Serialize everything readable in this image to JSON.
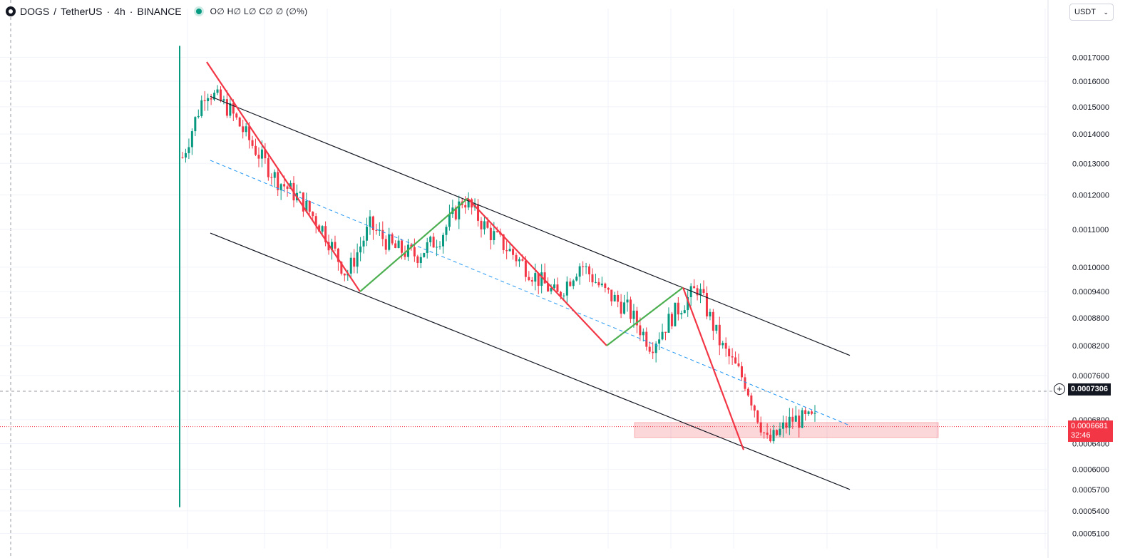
{
  "header": {
    "symbol": "DOGS",
    "separator": "/",
    "quote": "TetherUS",
    "interval": "4h",
    "exchange": "BINANCE",
    "ohlc_text": "O∅ H∅ L∅ C∅ ∅ (∅%)",
    "symbol_icon": "dogs-logo-icon"
  },
  "currency_selector": {
    "value": "USDT",
    "icon": "chevron-down-icon"
  },
  "crosshair": {
    "price_label": "0.0007306",
    "icon": "plus-circle-icon"
  },
  "last_price": {
    "price": "0.0006681",
    "countdown": "32:46"
  },
  "colors": {
    "up": "#089981",
    "down": "#f23645",
    "grid": "#f0f3fa",
    "trend_down": "#f23645",
    "trend_up": "#4caf50",
    "channel": "#131722",
    "midline": "#2196f3",
    "zone": "rgba(242,54,69,0.2)"
  },
  "chart_data": {
    "type": "candlestick",
    "symbol": "DOGS / TetherUS",
    "interval": "4h",
    "scale": "log",
    "ylim": [
      0.000505,
      0.00177
    ],
    "price_ticks": [
      "0.0017000",
      "0.0016000",
      "0.0015000",
      "0.0014000",
      "0.0013000",
      "0.0012000",
      "0.0011000",
      "0.0010000",
      "0.0009400",
      "0.0008800",
      "0.0008200",
      "0.0007600",
      "0.0006800",
      "0.0006400",
      "0.0006000",
      "0.0005700",
      "0.0005400",
      "0.0005100"
    ],
    "price_path": [
      0.00132,
      0.00157,
      0.00149,
      0.00136,
      0.00125,
      0.00119,
      0.0011,
      0.00098,
      0.00111,
      0.00105,
      0.00103,
      0.00108,
      0.00119,
      0.0011,
      0.00104,
      0.00098,
      0.00093,
      0.00101,
      0.00094,
      0.0009,
      0.00082,
      0.00089,
      0.00095,
      0.00082,
      0.00075,
      0.00064,
      0.00068,
      0.00068
    ],
    "zigzag": [
      {
        "from": 0.00168,
        "to": 0.00094,
        "direction": "down"
      },
      {
        "from": 0.00094,
        "to": 0.00119,
        "direction": "up"
      },
      {
        "from": 0.00119,
        "to": 0.00082,
        "direction": "down"
      },
      {
        "from": 0.00082,
        "to": 0.00095,
        "direction": "up"
      },
      {
        "from": 0.00095,
        "to": 0.00063,
        "direction": "down"
      }
    ],
    "channel": {
      "upper": {
        "start": 0.00154,
        "end": 0.0008
      },
      "lower": {
        "start": 0.00109,
        "end": 0.00057
      },
      "midline": {
        "start": 0.00131,
        "end": 0.00067
      }
    },
    "support_zone": {
      "low": 0.00065,
      "high": 0.000675
    },
    "current_price": 0.0006681,
    "crosshair_price": 0.0007306
  }
}
